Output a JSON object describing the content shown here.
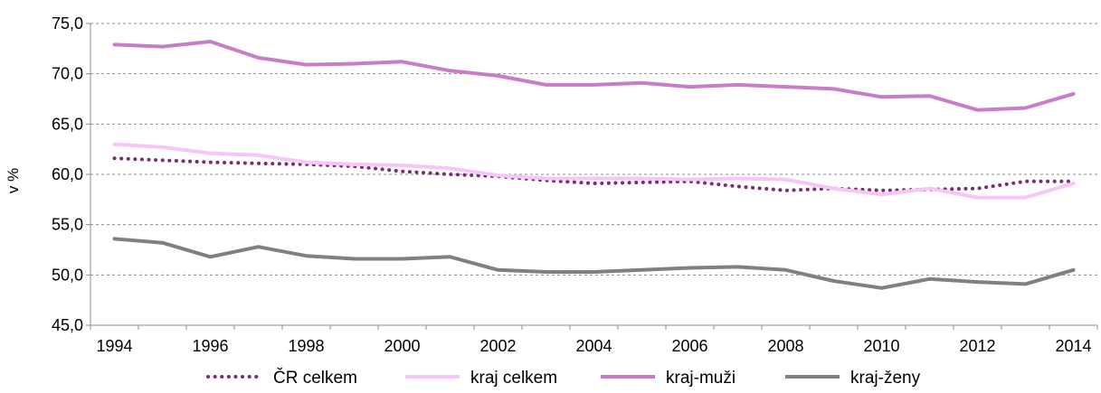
{
  "chart_data": {
    "type": "line",
    "title": "",
    "xlabel": "",
    "ylabel": "v %",
    "ylim": [
      45.0,
      75.0
    ],
    "y_ticks": [
      "45,0",
      "50,0",
      "55,0",
      "60,0",
      "65,0",
      "70,0",
      "75,0"
    ],
    "x": [
      1994,
      1995,
      1996,
      1997,
      1998,
      1999,
      2000,
      2001,
      2002,
      2003,
      2004,
      2005,
      2006,
      2007,
      2008,
      2009,
      2010,
      2011,
      2012,
      2013,
      2014
    ],
    "x_tick_labels": [
      "1994",
      "1996",
      "1998",
      "2000",
      "2002",
      "2004",
      "2006",
      "2008",
      "2010",
      "2012",
      "2014"
    ],
    "grid": "horizontal dashed",
    "legend_position": "bottom",
    "series": [
      {
        "name": "ČR celkem",
        "color": "#7b2e6a",
        "style": "dotted",
        "values": [
          61.6,
          61.4,
          61.2,
          61.1,
          61.0,
          60.8,
          60.3,
          60.0,
          59.8,
          59.4,
          59.1,
          59.2,
          59.3,
          58.8,
          58.4,
          58.6,
          58.4,
          58.5,
          58.6,
          59.3,
          59.3
        ]
      },
      {
        "name": "kraj celkem",
        "color": "#f7c6f7",
        "style": "solid",
        "values": [
          63.0,
          62.7,
          62.1,
          61.9,
          61.2,
          61.0,
          60.9,
          60.6,
          59.9,
          59.6,
          59.6,
          59.6,
          59.5,
          59.6,
          59.5,
          58.6,
          58.0,
          58.6,
          57.7,
          57.7,
          59.1
        ]
      },
      {
        "name": "kraj-muži",
        "color": "#c77dc7",
        "style": "solid",
        "values": [
          72.9,
          72.7,
          73.2,
          71.6,
          70.9,
          71.0,
          71.2,
          70.3,
          69.8,
          68.9,
          68.9,
          69.1,
          68.7,
          68.9,
          68.7,
          68.5,
          67.7,
          67.8,
          66.4,
          66.6,
          68.0
        ]
      },
      {
        "name": "kraj-ženy",
        "color": "#808080",
        "style": "solid",
        "values": [
          53.6,
          53.2,
          51.8,
          52.8,
          51.9,
          51.6,
          51.6,
          51.8,
          50.5,
          50.3,
          50.3,
          50.5,
          50.7,
          50.8,
          50.5,
          49.4,
          48.7,
          49.6,
          49.3,
          49.1,
          50.5
        ]
      }
    ]
  }
}
